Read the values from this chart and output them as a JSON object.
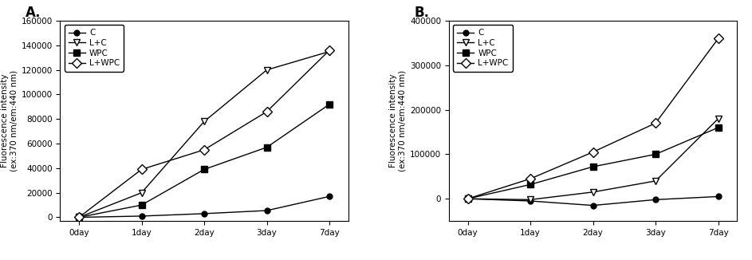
{
  "xticklabels": [
    "0day",
    "1day",
    "2day",
    "3day",
    "7day"
  ],
  "x": [
    0,
    1,
    2,
    3,
    4
  ],
  "panel_A": {
    "label": "A.",
    "ylim": [
      -3000,
      160000
    ],
    "yticks": [
      0,
      20000,
      40000,
      60000,
      80000,
      100000,
      120000,
      140000,
      160000
    ],
    "series": {
      "C": {
        "y": [
          0,
          1000,
          3000,
          5500,
          17000
        ],
        "marker": "o",
        "filled": true,
        "markersize": 5
      },
      "L+C": {
        "y": [
          0,
          20000,
          78000,
          120000,
          135000
        ],
        "marker": "v",
        "filled": false,
        "markersize": 6
      },
      "WPC": {
        "y": [
          0,
          10000,
          39000,
          57000,
          92000
        ],
        "marker": "s",
        "filled": true,
        "markersize": 6
      },
      "L+WPC": {
        "y": [
          0,
          39000,
          55000,
          86000,
          136000
        ],
        "marker": "D",
        "filled": false,
        "markersize": 6
      }
    }
  },
  "panel_B": {
    "label": "B.",
    "ylim": [
      -50000,
      400000
    ],
    "yticks": [
      0,
      100000,
      200000,
      300000,
      400000
    ],
    "series": {
      "C": {
        "y": [
          0,
          -5000,
          -15000,
          -2000,
          5000
        ],
        "marker": "o",
        "filled": true,
        "markersize": 5
      },
      "L+C": {
        "y": [
          0,
          -2000,
          15000,
          40000,
          180000
        ],
        "marker": "v",
        "filled": false,
        "markersize": 6
      },
      "WPC": {
        "y": [
          0,
          32000,
          72000,
          100000,
          160000
        ],
        "marker": "s",
        "filled": true,
        "markersize": 6
      },
      "L+WPC": {
        "y": [
          0,
          45000,
          105000,
          170000,
          360000
        ],
        "marker": "D",
        "filled": false,
        "markersize": 6
      }
    }
  },
  "ylabel": "Fluorescence intensity\n(ex:370 nm/em:440 nm)",
  "series_order": [
    "C",
    "L+C",
    "WPC",
    "L+WPC"
  ],
  "color": "black",
  "linewidth": 1.0,
  "tick_fontsize": 7.5,
  "label_fontsize": 7.5,
  "legend_fontsize": 7.5,
  "panel_label_fontsize": 12
}
